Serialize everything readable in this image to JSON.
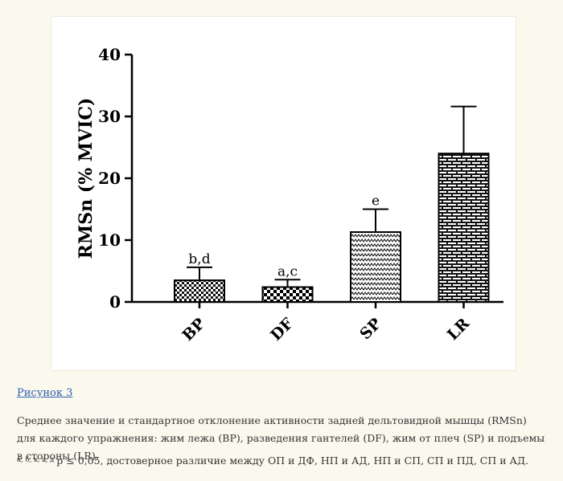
{
  "chart_data": {
    "type": "bar",
    "title": "",
    "xlabel": "",
    "ylabel": "RMSn (% MVIC)",
    "ylim": [
      0,
      40
    ],
    "yticks": [
      0,
      10,
      20,
      30,
      40
    ],
    "grid": false,
    "categories": [
      "BP",
      "DF",
      "SP",
      "LR"
    ],
    "values": [
      3.5,
      2.4,
      11.3,
      24.0
    ],
    "errors": [
      2.1,
      1.2,
      3.7,
      7.6
    ],
    "annotations": [
      "b,d",
      "a,c",
      "e",
      ""
    ],
    "patterns": [
      "checker",
      "checker-bold",
      "zigzag",
      "brick"
    ]
  },
  "figure": {
    "link_text": "Рисунок 3",
    "caption": "Среднее значение и стандартное отклонение активности задней дельтовидной мышцы (RMSn) для каждого упражнения: жим лежа (BP), разведения гантелей (DF), жим от плеч (SP) и подъемы в стороны (LR).",
    "footnote_marks": "а, б, в, г, д",
    "footnote_text": "p ≤ 0,05, достоверное различие между ОП и ДФ, НП и АД, НП и СП, СП и ПД, СП и АД."
  }
}
